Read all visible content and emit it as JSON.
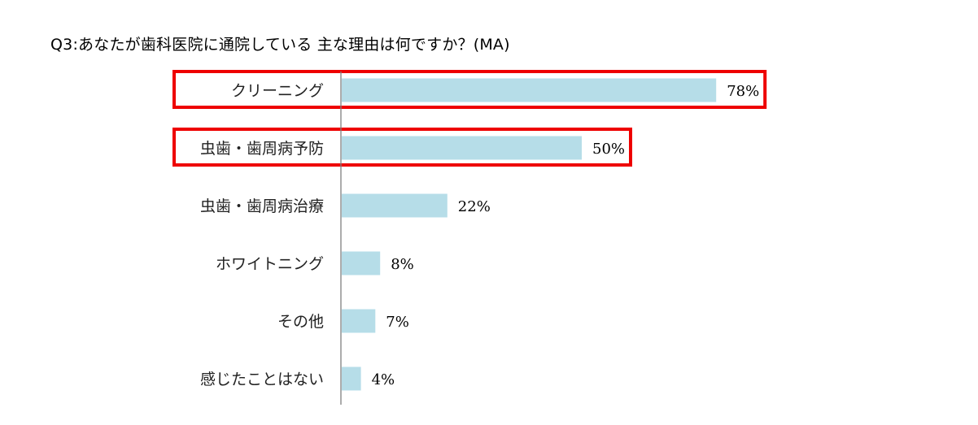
{
  "chart_data": {
    "type": "bar",
    "orientation": "horizontal",
    "title": "Q3:あなたが歯科医院に通院している 主な理由は何ですか？(MA)",
    "categories": [
      "クリーニング",
      "虫歯・歯周病予防",
      "虫歯・歯周病治療",
      "ホワイトニング",
      "その他",
      "感じたことはない"
    ],
    "values": [
      78,
      50,
      22,
      8,
      7,
      4
    ],
    "value_labels": [
      "78%",
      "50%",
      "22%",
      "8%",
      "7%",
      "4%"
    ],
    "unit": "%",
    "xlim": [
      0,
      100
    ],
    "grid": false,
    "legend": "none",
    "highlighted": [
      "クリーニング",
      "虫歯・歯周病予防"
    ],
    "colors": {
      "bar": "#b6dde8",
      "highlight": "#ee0000",
      "axis": "#7f7f7f"
    }
  }
}
